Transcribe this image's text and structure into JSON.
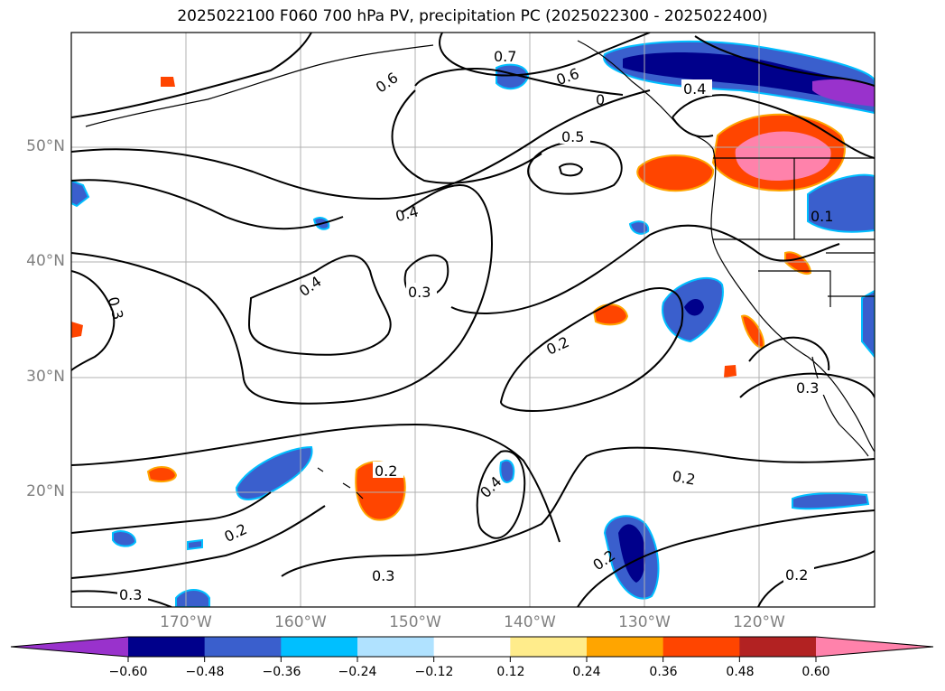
{
  "title": "2025022100 F060 700 hPa PV, precipitation PC (2025022300 - 2025022400)",
  "map": {
    "lat_labels": [
      "50°N",
      "40°N",
      "30°N",
      "20°N"
    ],
    "lon_labels": [
      "170°W",
      "160°W",
      "150°W",
      "140°W",
      "130°W",
      "120°W"
    ],
    "contour_labels": [
      "0.7",
      "0.6",
      "0.6",
      "0",
      "0.4",
      "0.5",
      "0.4",
      "0.4",
      "0.3",
      "0.3",
      "0.2",
      "0.2",
      "0.4",
      "0.2",
      "0.2",
      "0.2",
      "0.3",
      "0.3",
      "0.3",
      "0.2",
      "0.1"
    ]
  },
  "colorbar": {
    "ticks": [
      "−0.60",
      "−0.48",
      "−0.36",
      "−0.24",
      "−0.12",
      "0.12",
      "0.24",
      "0.36",
      "0.48",
      "0.60"
    ],
    "colors": [
      "#9932cc",
      "#00008b",
      "#3a5fcd",
      "#00bfff",
      "#b0e2ff",
      "#ffffff",
      "#ffec8b",
      "#ffa500",
      "#ff4500",
      "#b22222",
      "#ff82ab"
    ]
  }
}
